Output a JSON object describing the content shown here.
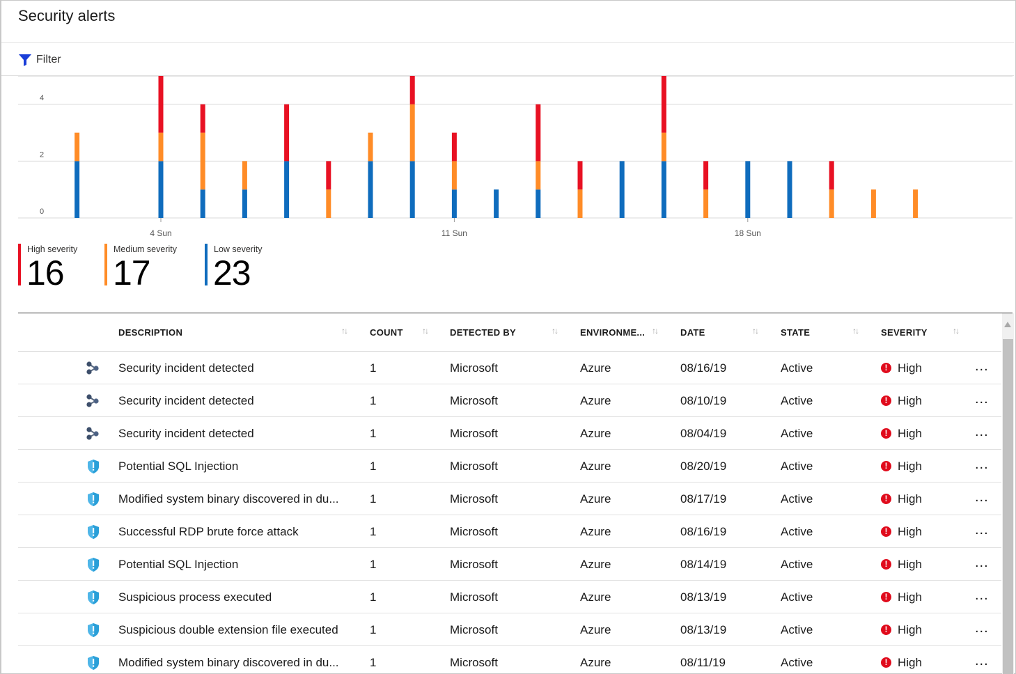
{
  "header": {
    "title": "Security alerts"
  },
  "toolbar": {
    "filter_label": "Filter",
    "filter_icon": "funnel-icon"
  },
  "colors": {
    "high": "#e81123",
    "medium": "#ff8c27",
    "low": "#0f6cbd"
  },
  "chart_data": {
    "type": "bar",
    "stacked": true,
    "categories": [
      "2",
      "4",
      "5",
      "6",
      "7",
      "8",
      "9",
      "10",
      "11",
      "12",
      "13",
      "14",
      "15",
      "16",
      "17",
      "18",
      "19",
      "20",
      "21",
      "22",
      "23"
    ],
    "x_tick_labels": [
      {
        "category": "4",
        "label": "4 Sun"
      },
      {
        "category": "11",
        "label": "11 Sun"
      },
      {
        "category": "18",
        "label": "18 Sun"
      }
    ],
    "y_ticks": [
      "0",
      "2",
      "4"
    ],
    "ylim": [
      0,
      5
    ],
    "series": [
      {
        "name": "Low severity",
        "values": [
          2,
          2,
          1,
          1,
          2,
          0,
          2,
          2,
          1,
          1,
          1,
          0,
          2,
          2,
          0,
          2,
          2,
          0,
          0,
          0,
          0
        ]
      },
      {
        "name": "Medium severity",
        "values": [
          1,
          1,
          2,
          1,
          0,
          1,
          1,
          2,
          1,
          0,
          1,
          1,
          0,
          1,
          1,
          0,
          0,
          1,
          1,
          1,
          0
        ]
      },
      {
        "name": "High severity",
        "values": [
          0,
          2,
          1,
          0,
          2,
          1,
          0,
          1,
          1,
          0,
          2,
          1,
          0,
          2,
          1,
          0,
          0,
          1,
          0,
          0,
          0
        ]
      }
    ],
    "grid": true
  },
  "summary": {
    "high": {
      "label": "High severity",
      "value": "16"
    },
    "medium": {
      "label": "Medium severity",
      "value": "17"
    },
    "low": {
      "label": "Low severity",
      "value": "23"
    }
  },
  "table": {
    "columns": {
      "description": "DESCRIPTION",
      "count": "COUNT",
      "detected_by": "DETECTED BY",
      "environment": "ENVIRONME...",
      "date": "DATE",
      "state": "STATE",
      "severity": "SEVERITY"
    },
    "sort_icon": "↑↓",
    "more_label": "...",
    "rows": [
      {
        "icon": "incident-icon",
        "description": "Security incident detected",
        "count": "1",
        "detected_by": "Microsoft",
        "environment": "Azure",
        "date": "08/16/19",
        "state": "Active",
        "severity": "High"
      },
      {
        "icon": "incident-icon",
        "description": "Security incident detected",
        "count": "1",
        "detected_by": "Microsoft",
        "environment": "Azure",
        "date": "08/10/19",
        "state": "Active",
        "severity": "High"
      },
      {
        "icon": "incident-icon",
        "description": "Security incident detected",
        "count": "1",
        "detected_by": "Microsoft",
        "environment": "Azure",
        "date": "08/04/19",
        "state": "Active",
        "severity": "High"
      },
      {
        "icon": "shield-alert-icon",
        "description": "Potential SQL Injection",
        "count": "1",
        "detected_by": "Microsoft",
        "environment": "Azure",
        "date": "08/20/19",
        "state": "Active",
        "severity": "High"
      },
      {
        "icon": "shield-alert-icon",
        "description": "Modified system binary discovered in du...",
        "count": "1",
        "detected_by": "Microsoft",
        "environment": "Azure",
        "date": "08/17/19",
        "state": "Active",
        "severity": "High"
      },
      {
        "icon": "shield-alert-icon",
        "description": "Successful RDP brute force attack",
        "count": "1",
        "detected_by": "Microsoft",
        "environment": "Azure",
        "date": "08/16/19",
        "state": "Active",
        "severity": "High"
      },
      {
        "icon": "shield-alert-icon",
        "description": "Potential SQL Injection",
        "count": "1",
        "detected_by": "Microsoft",
        "environment": "Azure",
        "date": "08/14/19",
        "state": "Active",
        "severity": "High"
      },
      {
        "icon": "shield-alert-icon",
        "description": "Suspicious process executed",
        "count": "1",
        "detected_by": "Microsoft",
        "environment": "Azure",
        "date": "08/13/19",
        "state": "Active",
        "severity": "High"
      },
      {
        "icon": "shield-alert-icon",
        "description": "Suspicious double extension file executed",
        "count": "1",
        "detected_by": "Microsoft",
        "environment": "Azure",
        "date": "08/13/19",
        "state": "Active",
        "severity": "High"
      },
      {
        "icon": "shield-alert-icon",
        "description": "Modified system binary discovered in du...",
        "count": "1",
        "detected_by": "Microsoft",
        "environment": "Azure",
        "date": "08/11/19",
        "state": "Active",
        "severity": "High"
      }
    ]
  }
}
